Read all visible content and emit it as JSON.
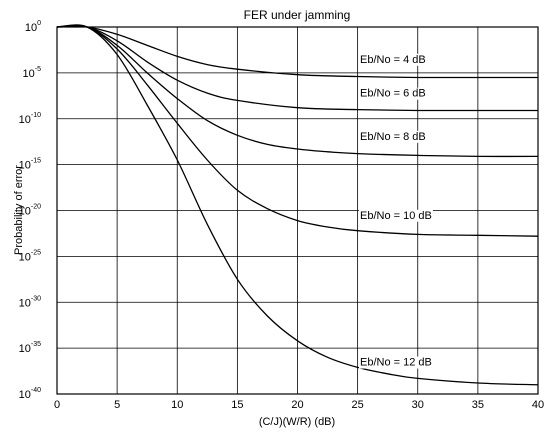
{
  "chart_data": {
    "type": "line",
    "title": "FER under jamming",
    "xlabel": "(C/J)(W/R) (dB)",
    "ylabel": "Probability of error",
    "xlim": [
      0,
      40
    ],
    "ylim_exponent": [
      -40,
      0
    ],
    "y_scale": "log",
    "grid": true,
    "x_ticks": [
      "0",
      "5",
      "10",
      "15",
      "20",
      "25",
      "30",
      "35",
      "40"
    ],
    "y_ticks": [
      {
        "base": "10",
        "exp": "0"
      },
      {
        "base": "10",
        "exp": "-5"
      },
      {
        "base": "10",
        "exp": "-10"
      },
      {
        "base": "10",
        "exp": "-15"
      },
      {
        "base": "10",
        "exp": "-20"
      },
      {
        "base": "10",
        "exp": "-25"
      },
      {
        "base": "10",
        "exp": "-30"
      },
      {
        "base": "10",
        "exp": "-35"
      },
      {
        "base": "10",
        "exp": "-40"
      }
    ],
    "series": [
      {
        "name": "Eb/No = 4 dB",
        "x": [
          0,
          2.5,
          5,
          7.5,
          10,
          12.5,
          15,
          20,
          25,
          30,
          35,
          40
        ],
        "y_exponent": [
          0,
          0,
          -0.8,
          -2.0,
          -3.2,
          -4.1,
          -4.6,
          -5.2,
          -5.4,
          -5.5,
          -5.5,
          -5.5
        ]
      },
      {
        "name": "Eb/No = 6 dB",
        "x": [
          0,
          2.5,
          5,
          7.5,
          10,
          12.5,
          15,
          20,
          25,
          30,
          35,
          40
        ],
        "y_exponent": [
          0,
          0,
          -1.5,
          -3.8,
          -5.8,
          -7.2,
          -8.0,
          -8.8,
          -9.0,
          -9.1,
          -9.1,
          -9.1
        ]
      },
      {
        "name": "Eb/No = 8 dB",
        "x": [
          0,
          2.5,
          5,
          7.5,
          10,
          12.5,
          15,
          17.5,
          20,
          22.5,
          25,
          30,
          35,
          40
        ],
        "y_exponent": [
          0,
          0,
          -2.0,
          -5.0,
          -7.8,
          -10.2,
          -11.8,
          -12.8,
          -13.3,
          -13.6,
          -13.8,
          -14.0,
          -14.1,
          -14.1
        ]
      },
      {
        "name": "Eb/No = 10 dB",
        "x": [
          0,
          2.5,
          5,
          7.5,
          10,
          12.5,
          15,
          17.5,
          20,
          22.5,
          25,
          30,
          35,
          40
        ],
        "y_exponent": [
          0,
          0,
          -2.4,
          -6.3,
          -10.5,
          -14.5,
          -17.8,
          -19.8,
          -21.1,
          -21.8,
          -22.2,
          -22.6,
          -22.7,
          -22.8
        ]
      },
      {
        "name": "Eb/No = 12 dB",
        "x": [
          0,
          2.5,
          5,
          7.5,
          10,
          12.5,
          15,
          17.5,
          20,
          22.5,
          25,
          27.5,
          30,
          35,
          40
        ],
        "y_exponent": [
          0,
          0,
          -3.0,
          -8.5,
          -14.5,
          -21.5,
          -27.5,
          -31.5,
          -34.2,
          -36.0,
          -37.1,
          -37.8,
          -38.3,
          -38.8,
          -39.0
        ]
      }
    ]
  }
}
